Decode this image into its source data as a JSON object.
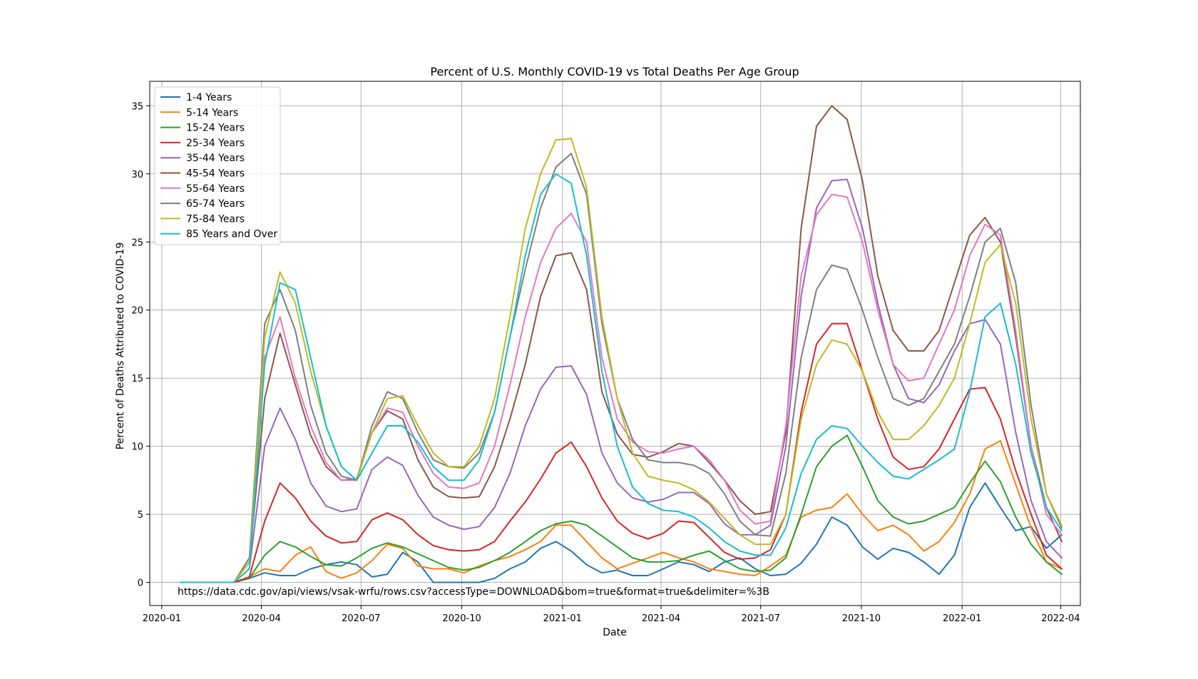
{
  "chart_data": {
    "type": "line",
    "title": "Percent of U.S. Monthly COVID-19 vs Total Deaths Per Age Group",
    "xlabel": "Date",
    "ylabel": "Percent of Deaths Attributed to COVID-19",
    "annotation": "https://data.cdc.gov/api/views/vsak-wrfu/rows.csv?accessType=DOWNLOAD&bom=true&format=true&delimiter=%3B",
    "xlim": [
      "2019-12-21",
      "2022-04-19"
    ],
    "ylim": [
      -1.7,
      36.8
    ],
    "x_ticks": [
      "2020-01-01",
      "2020-04-01",
      "2020-07-01",
      "2020-10-01",
      "2021-01-01",
      "2021-04-01",
      "2021-07-01",
      "2021-10-01",
      "2022-01-01",
      "2022-04-01"
    ],
    "x_tick_labels": [
      "2020-01",
      "2020-04",
      "2020-07",
      "2020-10",
      "2021-01",
      "2021-04",
      "2021-07",
      "2021-10",
      "2022-01",
      "2022-04"
    ],
    "y_ticks": [
      0,
      5,
      10,
      15,
      20,
      25,
      30,
      35
    ],
    "y_tick_labels": [
      "0",
      "5",
      "10",
      "15",
      "20",
      "25",
      "30",
      "35"
    ],
    "grid": true,
    "legend_position": "top-left",
    "x": [
      "2020-01-18",
      "2020-03-07",
      "2020-03-21",
      "2020-04-04",
      "2020-04-18",
      "2020-05-02",
      "2020-05-16",
      "2020-05-30",
      "2020-06-13",
      "2020-06-27",
      "2020-07-11",
      "2020-07-25",
      "2020-08-08",
      "2020-08-22",
      "2020-09-05",
      "2020-09-19",
      "2020-10-03",
      "2020-10-17",
      "2020-10-31",
      "2020-11-14",
      "2020-11-28",
      "2020-12-12",
      "2020-12-26",
      "2021-01-09",
      "2021-01-23",
      "2021-02-06",
      "2021-02-20",
      "2021-03-06",
      "2021-03-20",
      "2021-04-03",
      "2021-04-17",
      "2021-05-01",
      "2021-05-15",
      "2021-05-29",
      "2021-06-12",
      "2021-06-26",
      "2021-07-10",
      "2021-07-24",
      "2021-08-07",
      "2021-08-21",
      "2021-09-04",
      "2021-09-18",
      "2021-10-02",
      "2021-10-16",
      "2021-10-30",
      "2021-11-13",
      "2021-11-27",
      "2021-12-11",
      "2021-12-25",
      "2022-01-08",
      "2022-01-22",
      "2022-02-05",
      "2022-02-19",
      "2022-03-05",
      "2022-03-19",
      "2022-04-02"
    ],
    "series": [
      {
        "name": "1-4 Years",
        "color": "#1f77b4",
        "values": [
          0,
          0,
          0.3,
          0.7,
          0.5,
          0.5,
          1.0,
          1.3,
          1.5,
          1.3,
          0.4,
          0.6,
          2.2,
          1.5,
          0,
          0,
          0,
          0,
          0.3,
          1.0,
          1.5,
          2.5,
          3.0,
          2.3,
          1.3,
          0.7,
          0.9,
          0.5,
          0.5,
          1.0,
          1.5,
          1.3,
          0.8,
          1.5,
          1.8,
          1.0,
          0.5,
          0.6,
          1.4,
          2.8,
          4.8,
          4.2,
          2.6,
          1.7,
          2.5,
          2.2,
          1.5,
          0.6,
          2.0,
          5.5,
          7.3,
          5.5,
          3.8,
          4.1,
          2.5,
          3.5
        ]
      },
      {
        "name": "5-14 Years",
        "color": "#ff7f0e",
        "values": [
          0,
          0,
          0.4,
          1.0,
          0.8,
          2.0,
          2.6,
          0.8,
          0.3,
          0.7,
          1.6,
          2.8,
          2.5,
          1.2,
          1.0,
          1.0,
          0.7,
          1.2,
          1.6,
          1.9,
          2.4,
          3.0,
          4.2,
          4.2,
          3.0,
          1.8,
          1.0,
          1.4,
          1.8,
          2.2,
          1.8,
          1.5,
          1.0,
          0.8,
          0.6,
          0.5,
          1.2,
          2.0,
          4.8,
          5.3,
          5.5,
          6.5,
          5.0,
          3.8,
          4.2,
          3.5,
          2.3,
          3.0,
          4.4,
          6.5,
          9.8,
          10.4,
          7.2,
          4.0,
          1.5,
          1.0
        ]
      },
      {
        "name": "15-24 Years",
        "color": "#2ca02c",
        "values": [
          0,
          0,
          0.3,
          2.0,
          3.0,
          2.6,
          1.9,
          1.3,
          1.2,
          1.8,
          2.5,
          2.9,
          2.6,
          2.1,
          1.6,
          1.1,
          0.9,
          1.1,
          1.6,
          2.2,
          3.0,
          3.8,
          4.3,
          4.5,
          4.2,
          3.4,
          2.6,
          1.8,
          1.5,
          1.5,
          1.6,
          2.0,
          2.3,
          1.6,
          1.0,
          0.8,
          0.9,
          1.8,
          5.0,
          8.5,
          10.0,
          10.8,
          8.5,
          6.0,
          4.8,
          4.3,
          4.5,
          5.0,
          5.5,
          7.3,
          8.9,
          7.4,
          4.8,
          2.8,
          1.5,
          0.6
        ]
      },
      {
        "name": "25-34 Years",
        "color": "#d62728",
        "values": [
          0,
          0,
          0.4,
          4.5,
          7.3,
          6.2,
          4.5,
          3.4,
          2.9,
          3.0,
          4.6,
          5.1,
          4.6,
          3.5,
          2.7,
          2.4,
          2.3,
          2.4,
          3.0,
          4.5,
          5.9,
          7.6,
          9.5,
          10.3,
          8.5,
          6.2,
          4.5,
          3.6,
          3.2,
          3.6,
          4.5,
          4.4,
          3.3,
          2.2,
          1.7,
          1.8,
          2.4,
          5.0,
          12.5,
          17.5,
          19.0,
          19.0,
          15.5,
          12.0,
          9.2,
          8.3,
          8.5,
          9.8,
          12.0,
          14.2,
          14.3,
          12.0,
          8.2,
          5.0,
          2.0,
          1.0
        ]
      },
      {
        "name": "35-44 Years",
        "color": "#9467bd",
        "values": [
          0,
          0,
          1.0,
          10.0,
          12.8,
          10.5,
          7.3,
          5.6,
          5.2,
          5.4,
          8.3,
          9.2,
          8.6,
          6.4,
          4.8,
          4.2,
          3.9,
          4.1,
          5.5,
          8.0,
          11.5,
          14.2,
          15.8,
          15.9,
          13.8,
          9.5,
          7.3,
          6.2,
          5.9,
          6.1,
          6.6,
          6.6,
          5.8,
          4.3,
          3.5,
          3.5,
          4.2,
          10.0,
          21.0,
          27.5,
          29.5,
          29.6,
          26.0,
          20.5,
          16.0,
          13.5,
          13.2,
          14.5,
          17.0,
          19.0,
          19.3,
          17.5,
          11.0,
          6.0,
          3.0,
          1.8
        ]
      },
      {
        "name": "45-54 Years",
        "color": "#8c564b",
        "values": [
          0,
          0,
          1.5,
          13.5,
          18.3,
          14.5,
          10.8,
          8.5,
          7.5,
          7.6,
          11.0,
          12.6,
          12.0,
          9.0,
          7.0,
          6.3,
          6.2,
          6.3,
          8.5,
          12.0,
          16.0,
          21.0,
          24.0,
          24.2,
          21.5,
          14.0,
          10.9,
          9.4,
          9.2,
          9.6,
          10.2,
          10.0,
          8.8,
          7.5,
          6.0,
          5.0,
          5.2,
          11.0,
          26.0,
          33.5,
          35.0,
          34.0,
          29.5,
          22.5,
          18.5,
          17.0,
          17.0,
          18.5,
          22.0,
          25.5,
          26.8,
          25.0,
          18.0,
          10.0,
          5.5,
          3.0
        ]
      },
      {
        "name": "55-64 Years",
        "color": "#e377c2",
        "values": [
          0,
          0,
          1.8,
          16.5,
          19.5,
          15.0,
          11.5,
          8.8,
          7.5,
          7.5,
          11.0,
          12.8,
          12.5,
          10.0,
          8.0,
          7.0,
          6.9,
          7.3,
          10.0,
          14.5,
          19.5,
          23.5,
          26.0,
          27.1,
          25.0,
          16.5,
          12.0,
          10.3,
          9.6,
          9.5,
          9.8,
          10.0,
          9.0,
          7.5,
          5.3,
          4.3,
          4.5,
          11.5,
          22.5,
          27.0,
          28.5,
          28.3,
          25.0,
          20.0,
          16.0,
          14.8,
          15.0,
          17.5,
          20.0,
          24.0,
          26.3,
          25.5,
          18.5,
          10.0,
          5.0,
          3.5
        ]
      },
      {
        "name": "65-74 Years",
        "color": "#7f7f7f",
        "values": [
          0,
          0,
          1.8,
          19.0,
          21.5,
          18.5,
          13.0,
          9.5,
          7.8,
          7.5,
          11.5,
          14.0,
          13.5,
          11.0,
          9.0,
          8.5,
          8.4,
          9.5,
          12.5,
          18.0,
          23.0,
          27.5,
          30.5,
          31.5,
          28.5,
          19.0,
          13.5,
          10.5,
          9.0,
          8.8,
          8.8,
          8.6,
          8.0,
          6.5,
          4.5,
          3.5,
          3.4,
          8.0,
          16.5,
          21.5,
          23.3,
          23.0,
          20.0,
          16.5,
          13.5,
          13.0,
          13.5,
          15.5,
          17.5,
          21.0,
          25.0,
          26.0,
          22.0,
          13.0,
          6.5,
          4.0
        ]
      },
      {
        "name": "75-84 Years",
        "color": "#bcbd22",
        "values": [
          0,
          0,
          1.5,
          18.0,
          22.8,
          20.5,
          15.5,
          11.5,
          8.5,
          7.5,
          11.0,
          13.5,
          13.7,
          11.5,
          9.5,
          8.5,
          8.5,
          10.0,
          13.5,
          19.5,
          26.0,
          30.0,
          32.5,
          32.6,
          29.0,
          19.5,
          13.5,
          9.5,
          7.8,
          7.5,
          7.3,
          6.8,
          5.9,
          4.7,
          3.5,
          2.8,
          2.8,
          5.0,
          12.0,
          16.0,
          17.8,
          17.5,
          15.5,
          12.5,
          10.5,
          10.5,
          11.5,
          13.0,
          15.0,
          19.0,
          23.5,
          24.8,
          20.5,
          12.0,
          6.5,
          4.2
        ]
      },
      {
        "name": "85 Years and Over",
        "color": "#17becf",
        "values": [
          0,
          0,
          1.0,
          16.0,
          22.0,
          21.5,
          16.5,
          11.5,
          8.5,
          7.5,
          9.5,
          11.5,
          11.5,
          10.3,
          8.5,
          7.5,
          7.5,
          9.0,
          12.5,
          18.0,
          24.0,
          28.5,
          30.0,
          29.3,
          24.0,
          15.5,
          10.0,
          7.0,
          5.8,
          5.3,
          5.2,
          4.8,
          4.0,
          3.0,
          2.3,
          2.0,
          2.0,
          4.0,
          8.0,
          10.5,
          11.5,
          11.3,
          10.0,
          8.8,
          7.8,
          7.6,
          8.3,
          9.0,
          9.8,
          14.0,
          19.5,
          20.5,
          16.0,
          9.5,
          5.5,
          3.8
        ]
      }
    ]
  }
}
